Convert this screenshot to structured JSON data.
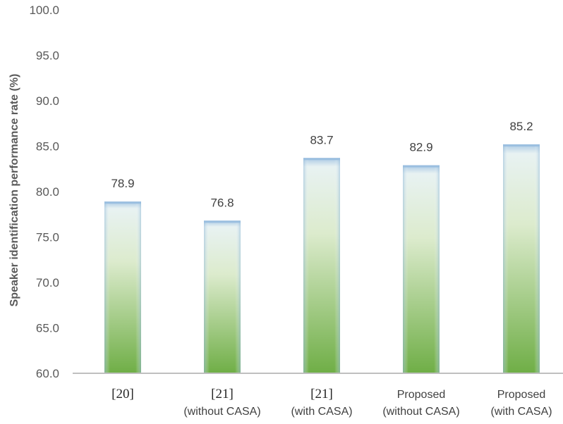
{
  "chart_data": {
    "type": "bar",
    "ylabel": "Speaker identification performance rate  (%)",
    "ylim": [
      60.0,
      100.0
    ],
    "yticks": [
      "60.0",
      "65.0",
      "70.0",
      "75.0",
      "80.0",
      "85.0",
      "90.0",
      "95.0",
      "100.0"
    ],
    "grid": false,
    "categories": [
      {
        "line1": "[20]",
        "line2": ""
      },
      {
        "line1": "[21]",
        "line2": "(without CASA)"
      },
      {
        "line1": "[21]",
        "line2": "(with CASA)"
      },
      {
        "line1": "Proposed",
        "line2": "(without CASA)"
      },
      {
        "line1": "Proposed",
        "line2": "(with CASA)"
      }
    ],
    "values": [
      78.9,
      76.8,
      83.7,
      82.9,
      85.2
    ],
    "value_labels": [
      "78.9",
      "76.8",
      "83.7",
      "82.9",
      "85.2"
    ],
    "colors": {
      "bar_top": "#a9c8e4",
      "bar_mid": "#e6f1dc",
      "bar_bottom": "#6fae46",
      "axis": "#bfbfbf"
    }
  }
}
